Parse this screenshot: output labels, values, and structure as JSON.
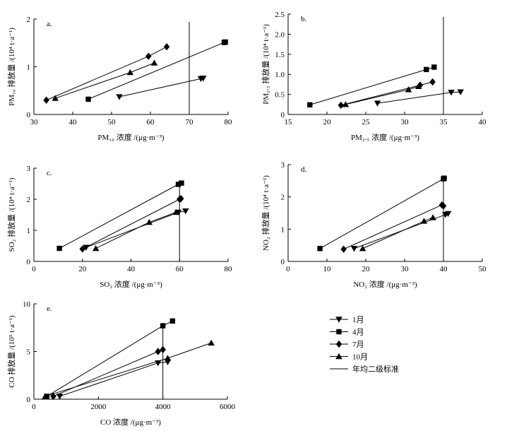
{
  "chart_data": [
    {
      "id": "a",
      "type": "scatter",
      "panel_label": "a.",
      "xlabel": "PM₁₀ 浓度 /(μg·m⁻³)",
      "ylabel": "PM₁₀ 排放量 /(10⁴ t·a⁻¹)",
      "xlim": [
        30,
        80
      ],
      "ylim": [
        0,
        2
      ],
      "xticks": [
        "30",
        "40",
        "50",
        "60",
        "70",
        "80"
      ],
      "yticks": [
        "0",
        "1",
        "2"
      ],
      "standard": 70,
      "series": [
        {
          "name": "1月",
          "marker": "tri-down",
          "points": [
            [
              52,
              0.37
            ],
            [
              73,
              0.75
            ],
            [
              73.6,
              0.76
            ]
          ]
        },
        {
          "name": "4月",
          "marker": "square",
          "points": [
            [
              44,
              0.32
            ],
            [
              79,
              1.51
            ],
            [
              79.3,
              1.52
            ]
          ]
        },
        {
          "name": "7月",
          "marker": "diamond",
          "points": [
            [
              33.2,
              0.3
            ],
            [
              59.5,
              1.22
            ],
            [
              64.2,
              1.42
            ]
          ]
        },
        {
          "name": "10月",
          "marker": "tri-up",
          "points": [
            [
              35.5,
              0.34
            ],
            [
              54.8,
              0.88
            ],
            [
              61,
              1.08
            ]
          ]
        }
      ]
    },
    {
      "id": "b",
      "type": "scatter",
      "panel_label": "b.",
      "xlabel": "PM₂.₅ 浓度 /(μg·m⁻³)",
      "ylabel": "PM₂.₅ 排放量 /(10⁴ t·a⁻¹)",
      "xlim": [
        15,
        40
      ],
      "ylim": [
        0,
        2.5
      ],
      "xticks": [
        "15",
        "20",
        "25",
        "30",
        "35",
        "40"
      ],
      "yticks": [
        "0",
        "0.5",
        "1.0",
        "1.5",
        "2.0",
        "2.5"
      ],
      "standard": 35,
      "series": [
        {
          "name": "1月",
          "marker": "tri-down",
          "points": [
            [
              26.5,
              0.28
            ],
            [
              36,
              0.55
            ],
            [
              37.2,
              0.56
            ]
          ]
        },
        {
          "name": "4月",
          "marker": "square",
          "points": [
            [
              17.8,
              0.24
            ],
            [
              32.8,
              1.12
            ],
            [
              33.8,
              1.18
            ]
          ]
        },
        {
          "name": "7月",
          "marker": "diamond",
          "points": [
            [
              21.8,
              0.23
            ],
            [
              32,
              0.73
            ],
            [
              33.6,
              0.81
            ]
          ]
        },
        {
          "name": "10月",
          "marker": "tri-up",
          "points": [
            [
              22.4,
              0.25
            ],
            [
              30.5,
              0.62
            ],
            [
              31.8,
              0.7
            ]
          ]
        }
      ]
    },
    {
      "id": "c",
      "type": "scatter",
      "panel_label": "c.",
      "xlabel": "SO₂ 浓度 /(μg·m⁻³)",
      "ylabel": "SO₂ 排放量 /(10⁴ t·a⁻¹)",
      "xlim": [
        0,
        80
      ],
      "ylim": [
        0,
        3
      ],
      "xticks": [
        "0",
        "20",
        "40",
        "60",
        "80"
      ],
      "yticks": [
        "0",
        "1",
        "2",
        "3"
      ],
      "standard": 60,
      "series": [
        {
          "name": "1月",
          "marker": "tri-down",
          "points": [
            [
              21.5,
              0.45
            ],
            [
              59.5,
              1.58
            ],
            [
              62.5,
              1.62
            ]
          ]
        },
        {
          "name": "4月",
          "marker": "square",
          "points": [
            [
              10.5,
              0.42
            ],
            [
              59.5,
              2.48
            ],
            [
              60.8,
              2.52
            ]
          ]
        },
        {
          "name": "7月",
          "marker": "diamond",
          "points": [
            [
              20,
              0.4
            ],
            [
              60,
              2.0
            ],
            [
              60.6,
              2.02
            ]
          ]
        },
        {
          "name": "10月",
          "marker": "tri-up",
          "points": [
            [
              25.5,
              0.42
            ],
            [
              47.5,
              1.26
            ],
            [
              58.5,
              1.58
            ]
          ]
        }
      ]
    },
    {
      "id": "d",
      "type": "scatter",
      "panel_label": "d.",
      "xlabel": "NO₂ 浓度 /(μg·m⁻³)",
      "ylabel": "NO₂ 排放量 /(10⁴ t·a⁻¹)",
      "xlim": [
        0,
        50
      ],
      "ylim": [
        0,
        3
      ],
      "xticks": [
        "0",
        "10",
        "20",
        "30",
        "40",
        "50"
      ],
      "yticks": [
        "0",
        "1",
        "2",
        "3"
      ],
      "standard": 40,
      "series": [
        {
          "name": "1月",
          "marker": "tri-down",
          "points": [
            [
              17,
              0.4
            ],
            [
              40.5,
              1.45
            ],
            [
              41.2,
              1.48
            ]
          ]
        },
        {
          "name": "4月",
          "marker": "square",
          "points": [
            [
              8.2,
              0.4
            ],
            [
              40,
              2.56
            ],
            [
              40.2,
              2.58
            ]
          ]
        },
        {
          "name": "7月",
          "marker": "diamond",
          "points": [
            [
              14.3,
              0.38
            ],
            [
              39.6,
              1.75
            ],
            [
              40,
              1.72
            ]
          ]
        },
        {
          "name": "10月",
          "marker": "tri-up",
          "points": [
            [
              19.2,
              0.4
            ],
            [
              35,
              1.25
            ],
            [
              37.3,
              1.36
            ]
          ]
        }
      ]
    },
    {
      "id": "e",
      "type": "scatter",
      "panel_label": "e.",
      "xlabel": "CO 浓度 /(μg·m⁻³)",
      "ylabel": "CO 排放量 /(10⁵ t·a⁻¹)",
      "xlim": [
        0,
        6000
      ],
      "ylim": [
        0,
        10
      ],
      "xticks": [
        "0",
        "2000",
        "4000",
        "6000"
      ],
      "yticks": [
        "0",
        "5",
        "10"
      ],
      "standard": 4000,
      "series": [
        {
          "name": "1月",
          "marker": "tri-down",
          "points": [
            [
              800,
              0.3
            ],
            [
              3850,
              3.8
            ],
            [
              4150,
              3.9
            ]
          ]
        },
        {
          "name": "4月",
          "marker": "square",
          "points": [
            [
              400,
              0.3
            ],
            [
              4000,
              7.7
            ],
            [
              4300,
              8.2
            ]
          ]
        },
        {
          "name": "7月",
          "marker": "diamond",
          "points": [
            [
              600,
              0.3
            ],
            [
              3850,
              5.0
            ],
            [
              4000,
              5.2
            ]
          ]
        },
        {
          "name": "10月",
          "marker": "tri-up",
          "points": [
            [
              350,
              0.3
            ],
            [
              4150,
              4.3
            ],
            [
              5500,
              5.9
            ]
          ]
        }
      ]
    }
  ],
  "legend": [
    {
      "label": "1月",
      "marker": "tri-down"
    },
    {
      "label": "4月",
      "marker": "square"
    },
    {
      "label": "7月",
      "marker": "diamond"
    },
    {
      "label": "10月",
      "marker": "tri-up"
    },
    {
      "label": "年均二级标准",
      "marker": "line"
    }
  ]
}
